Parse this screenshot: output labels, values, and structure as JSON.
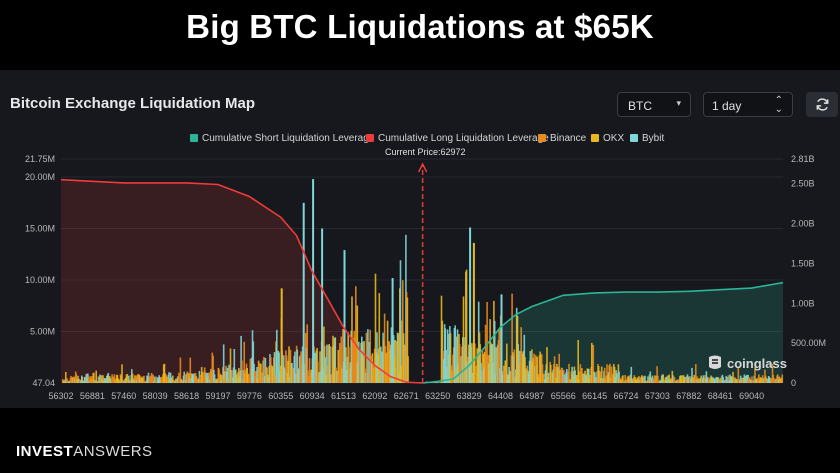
{
  "headline": "Big BTC Liquidations at $65K",
  "panel": {
    "title": "Bitcoin Exchange Liquidation Map",
    "asset_value": "BTC",
    "range_value": "1 day",
    "logo_text": "coinglass"
  },
  "brand": {
    "part1": "INVEST",
    "part2": "ANSWERS"
  },
  "colors": {
    "short": "#2bb596",
    "long": "#ef3b3b",
    "binance": "#e98a1d",
    "okx": "#e8b81e",
    "bybit": "#7fd6d8",
    "background": "#16181d"
  },
  "chart_data": {
    "type": "bar",
    "current_price_label": "Current Price:62972",
    "current_price": 62972,
    "legend": [
      {
        "key": "short",
        "label": "Cumulative Short Liquidation Leverage"
      },
      {
        "key": "long",
        "label": "Cumulative Long Liquidation Leverage"
      },
      {
        "key": "binance",
        "label": "Binance"
      },
      {
        "key": "okx",
        "label": "OKX"
      },
      {
        "key": "bybit",
        "label": "Bybit"
      }
    ],
    "x_ticks": [
      "56302",
      "56881",
      "57460",
      "58039",
      "58618",
      "59197",
      "59776",
      "60355",
      "60934",
      "61513",
      "62092",
      "62671",
      "63250",
      "63829",
      "64408",
      "64987",
      "65566",
      "66145",
      "66724",
      "67303",
      "67882",
      "68461",
      "69040"
    ],
    "x_range": [
      56302,
      69619
    ],
    "left_axis": {
      "ticks": [
        "47.04",
        "5.00M",
        "10.00M",
        "15.00M",
        "20.00M",
        "21.75M"
      ],
      "values": [
        0,
        5,
        10,
        15,
        20,
        21.75
      ],
      "unit": "M",
      "range": [
        0,
        21.75
      ]
    },
    "right_axis": {
      "ticks": [
        "0",
        "500.00M",
        "1.00B",
        "1.50B",
        "2.00B",
        "2.50B",
        "2.81B"
      ],
      "values": [
        0,
        0.5,
        1.0,
        1.5,
        2.0,
        2.5,
        2.81
      ],
      "unit": "B",
      "range": [
        0,
        2.81
      ]
    },
    "cumulative_long": {
      "x": [
        56302,
        56881,
        57460,
        58039,
        58618,
        59197,
        59776,
        60355,
        60645,
        60934,
        61224,
        61513,
        61803,
        62092,
        62382,
        62671,
        62972
      ],
      "y": [
        2.55,
        2.53,
        2.51,
        2.51,
        2.51,
        2.49,
        2.34,
        2.08,
        1.85,
        1.4,
        1.05,
        0.7,
        0.42,
        0.22,
        0.08,
        0.01,
        0
      ]
    },
    "cumulative_short": {
      "x": [
        62972,
        63250,
        63540,
        63829,
        64118,
        64408,
        64698,
        64987,
        65566,
        66145,
        66724,
        67303,
        67882,
        68461,
        69040,
        69619
      ],
      "y": [
        0,
        0.02,
        0.05,
        0.22,
        0.45,
        0.7,
        0.86,
        0.96,
        1.1,
        1.13,
        1.14,
        1.14,
        1.15,
        1.17,
        1.19,
        1.26
      ]
    },
    "peak_bars": [
      {
        "x": 60934,
        "value": 19.8,
        "exchange": "bybit"
      },
      {
        "x": 60760,
        "value": 17.5,
        "exchange": "bybit"
      },
      {
        "x": 61100,
        "value": 15.0,
        "exchange": "bybit"
      },
      {
        "x": 63829,
        "value": 15.1,
        "exchange": "bybit"
      },
      {
        "x": 63900,
        "value": 13.6,
        "exchange": "okx"
      },
      {
        "x": 61513,
        "value": 12.9,
        "exchange": "bybit"
      },
      {
        "x": 62400,
        "value": 10.2,
        "exchange": "bybit"
      },
      {
        "x": 60355,
        "value": 9.2,
        "exchange": "okx"
      },
      {
        "x": 64408,
        "value": 8.6,
        "exchange": "bybit"
      },
      {
        "x": 64700,
        "value": 6.5,
        "exchange": "okx"
      }
    ]
  }
}
